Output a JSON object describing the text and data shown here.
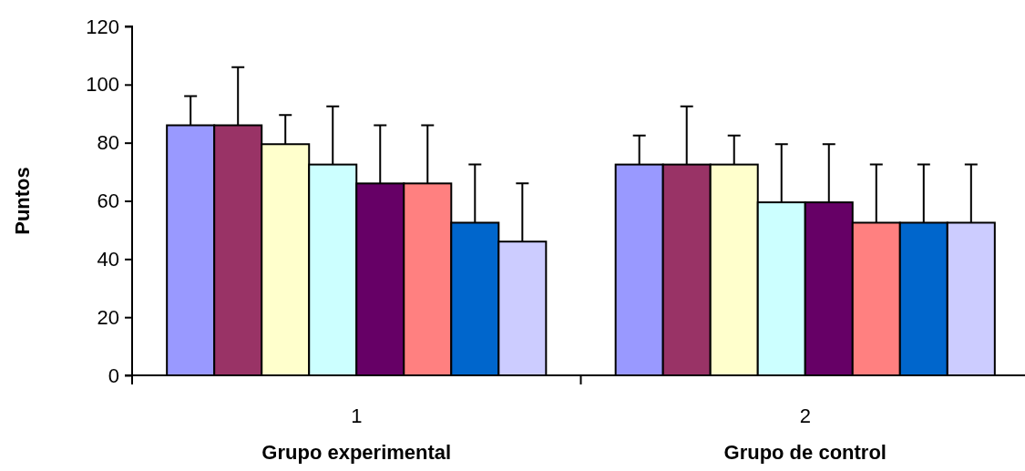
{
  "chart_data": {
    "type": "bar",
    "ylabel": "Puntos",
    "categories": [
      "1\nGrupo experimental",
      "2\nGrupo de control"
    ],
    "ylim": [
      0,
      120
    ],
    "yticks": [
      0,
      20,
      40,
      60,
      80,
      100,
      120
    ],
    "grid": false,
    "series": [
      {
        "color": "#9999ff",
        "values": [
          86,
          72.5
        ],
        "errors": [
          [
            86,
            96
          ],
          [
            72.5,
            82.5
          ]
        ]
      },
      {
        "color": "#993366",
        "values": [
          86,
          72.5
        ],
        "errors": [
          [
            86,
            106
          ],
          [
            72.5,
            92.5
          ]
        ]
      },
      {
        "color": "#ffffcc",
        "values": [
          79.5,
          72.5
        ],
        "errors": [
          [
            79.5,
            89.5
          ],
          [
            72.5,
            82.5
          ]
        ]
      },
      {
        "color": "#ccffff",
        "values": [
          72.5,
          59.5
        ],
        "errors": [
          [
            72.5,
            92.5
          ],
          [
            59.5,
            79.5
          ]
        ]
      },
      {
        "color": "#660066",
        "values": [
          66,
          59.5
        ],
        "errors": [
          [
            66,
            86
          ],
          [
            59.5,
            79.5
          ]
        ]
      },
      {
        "color": "#ff8080",
        "values": [
          66,
          52.5
        ],
        "errors": [
          [
            66,
            86
          ],
          [
            52.5,
            72.5
          ]
        ]
      },
      {
        "color": "#0066cc",
        "values": [
          52.5,
          52.5
        ],
        "errors": [
          [
            52.5,
            72.5
          ],
          [
            52.5,
            72.5
          ]
        ]
      },
      {
        "color": "#ccccff",
        "values": [
          46,
          52.5
        ],
        "errors": [
          [
            46,
            66
          ],
          [
            52.5,
            72.5
          ]
        ]
      }
    ]
  }
}
